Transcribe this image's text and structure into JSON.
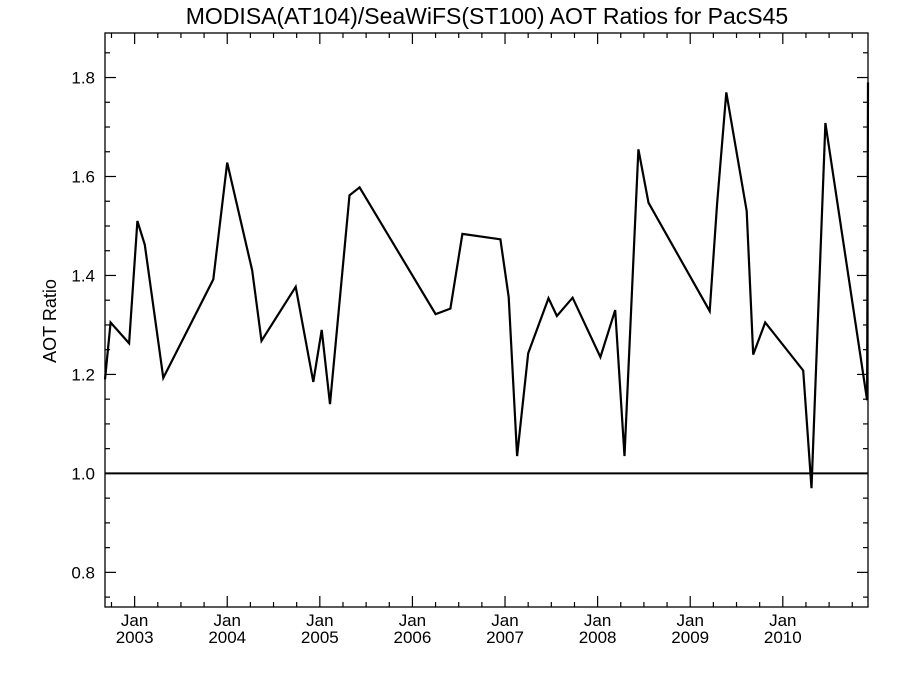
{
  "chart_data": {
    "type": "line",
    "title": "MODISA(AT104)/SeaWiFS(ST100)  AOT Ratios for PacS45",
    "xlabel": "",
    "ylabel": "AOT Ratio",
    "xlim": [
      2002.68,
      2010.92
    ],
    "ylim": [
      0.73,
      1.89
    ],
    "y_ticks": [
      {
        "value": 0.8,
        "label": "0.8"
      },
      {
        "value": 1.0,
        "label": "1.0"
      },
      {
        "value": 1.2,
        "label": "1.2"
      },
      {
        "value": 1.4,
        "label": "1.4"
      },
      {
        "value": 1.6,
        "label": "1.6"
      },
      {
        "value": 1.8,
        "label": "1.8"
      }
    ],
    "x_ticks": [
      {
        "value": 2003.0,
        "month": "Jan",
        "year": "2003"
      },
      {
        "value": 2004.0,
        "month": "Jan",
        "year": "2004"
      },
      {
        "value": 2005.0,
        "month": "Jan",
        "year": "2005"
      },
      {
        "value": 2006.0,
        "month": "Jan",
        "year": "2006"
      },
      {
        "value": 2007.0,
        "month": "Jan",
        "year": "2007"
      },
      {
        "value": 2008.0,
        "month": "Jan",
        "year": "2008"
      },
      {
        "value": 2009.0,
        "month": "Jan",
        "year": "2009"
      },
      {
        "value": 2010.0,
        "month": "Jan",
        "year": "2010"
      }
    ],
    "reference_line": {
      "y": 1.0
    },
    "grid": false,
    "series": [
      {
        "x": [
          2002.68,
          2002.74,
          2002.94,
          2003.03,
          2003.11,
          2003.31,
          2003.85,
          2004.0,
          2004.27,
          2004.37,
          2004.74,
          2004.93,
          2005.02,
          2005.11,
          2005.32,
          2005.43,
          2006.25,
          2006.41,
          2006.54,
          2006.95,
          2007.04,
          2007.13,
          2007.25,
          2007.47,
          2007.56,
          2007.73,
          2008.03,
          2008.19,
          2008.29,
          2008.44,
          2008.55,
          2009.21,
          2009.29,
          2009.39,
          2009.61,
          2009.68,
          2009.81,
          2010.22,
          2010.31,
          2010.46,
          2010.91,
          2010.92
        ],
        "y": [
          1.19,
          1.305,
          1.263,
          1.51,
          1.462,
          1.193,
          1.392,
          1.628,
          1.41,
          1.268,
          1.377,
          1.185,
          1.29,
          1.14,
          1.562,
          1.578,
          1.322,
          1.333,
          1.484,
          1.473,
          1.356,
          1.035,
          1.243,
          1.354,
          1.318,
          1.355,
          1.235,
          1.33,
          1.035,
          1.655,
          1.547,
          1.328,
          1.545,
          1.77,
          1.53,
          1.24,
          1.305,
          1.208,
          0.97,
          1.708,
          1.148,
          1.79
        ]
      }
    ]
  }
}
